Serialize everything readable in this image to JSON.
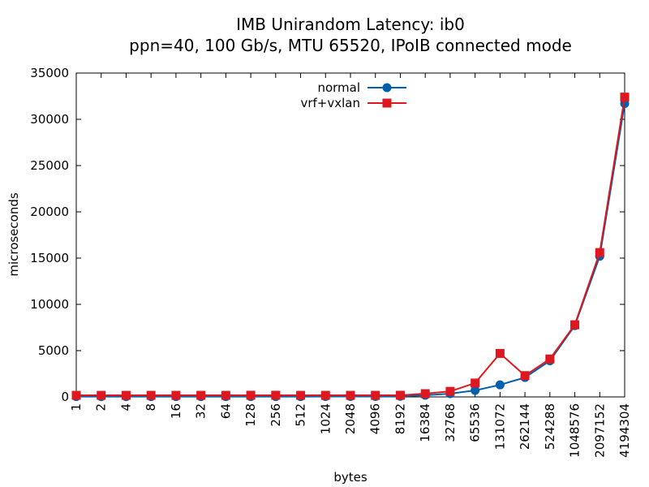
{
  "chart_data": {
    "type": "line",
    "title": "IMB Unirandom Latency: ib0",
    "subtitle": "ppn=40, 100 Gb/s, MTU 65520, IPoIB connected mode",
    "xlabel": "bytes",
    "ylabel": "microseconds",
    "ylim": [
      0,
      35000
    ],
    "yticks": [
      0,
      5000,
      10000,
      15000,
      20000,
      25000,
      30000,
      35000
    ],
    "categories": [
      "1",
      "2",
      "4",
      "8",
      "16",
      "32",
      "64",
      "128",
      "256",
      "512",
      "1024",
      "2048",
      "4096",
      "8192",
      "16384",
      "32768",
      "65536",
      "131072",
      "262144",
      "524288",
      "1048576",
      "2097152",
      "4194304"
    ],
    "legend_position": "top-center",
    "grid": false,
    "series": [
      {
        "name": "normal",
        "color": "#0060ad",
        "marker": "circle",
        "values": [
          30,
          30,
          30,
          30,
          30,
          30,
          30,
          30,
          35,
          35,
          40,
          40,
          50,
          70,
          180,
          350,
          700,
          1300,
          2100,
          3900,
          7700,
          15200,
          31700
        ]
      },
      {
        "name": "vrf+vxlan",
        "color": "#dd181f",
        "marker": "square",
        "values": [
          170,
          170,
          170,
          170,
          170,
          170,
          170,
          180,
          180,
          170,
          170,
          170,
          170,
          180,
          350,
          600,
          1500,
          4700,
          2300,
          4100,
          7800,
          15600,
          32400
        ]
      }
    ]
  }
}
